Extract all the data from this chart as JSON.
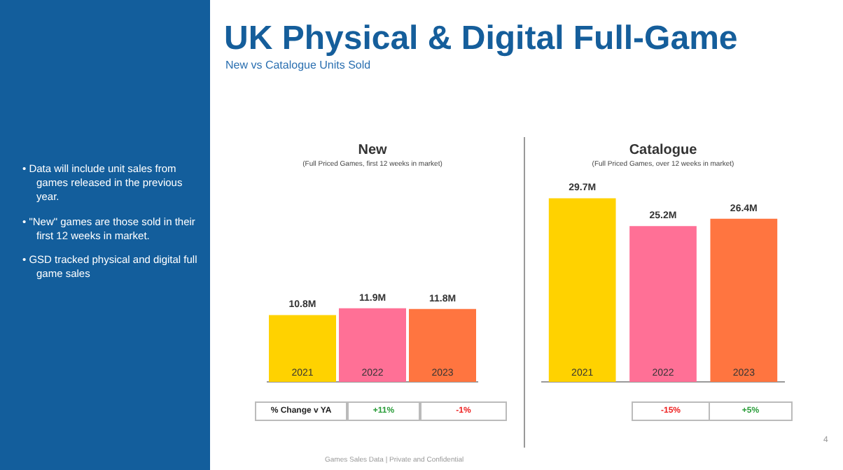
{
  "chart_data": [
    {
      "type": "bar",
      "title": "New",
      "subtitle": "(Full Priced Games, first 12 weeks in market)",
      "categories": [
        "2021",
        "2022",
        "2023"
      ],
      "values": [
        10.8,
        11.9,
        11.8
      ],
      "colors": [
        "#ffd200",
        "#ff7096",
        "#ff7540"
      ],
      "value_labels": [
        "10.8M",
        "11.9M",
        "11.8M"
      ],
      "annotations": [
        "UK Physical & Digital Full-Game",
        "New vs Catalogue Units Sold",
        "• Data will include unit sales from games released in the previous year.",
        "• \"New\" games are those sold in their first 12 weeks in market.",
        "• GSD tracked physical and digital full game sales",
        "Games Sales Data | Private and Confidential",
        "% Change v YA",
        "+11%",
        "-1%"
      ]
    },
    {
      "type": "bar",
      "title": "Catalogue",
      "subtitle": "(Full Priced Games, over 12 weeks in market)",
      "categories": [
        "2021",
        "2022",
        "2023"
      ],
      "values": [
        29.7,
        25.2,
        26.4
      ],
      "colors": [
        "#ffd200",
        "#ff7096",
        "#ff7540"
      ],
      "value_labels": [
        "29.7M",
        "25.2M",
        "26.4M"
      ],
      "annotations": [
        "-15%",
        "+5%",
        "4"
      ]
    }
  ]
}
